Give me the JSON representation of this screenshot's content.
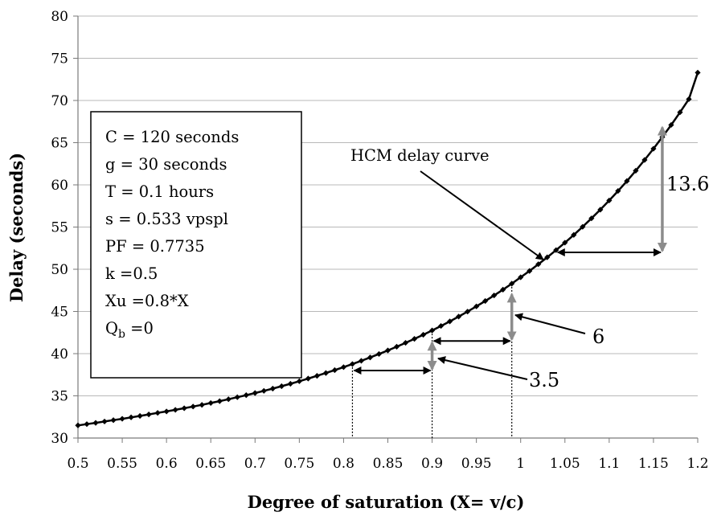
{
  "chart_data": {
    "type": "line",
    "xlabel": "Degree of saturation (X= v/c)",
    "ylabel": "Delay (seconds)",
    "xlim": [
      0.5,
      1.2
    ],
    "ylim": [
      30,
      80
    ],
    "x_ticks": [
      "0.5",
      "0.55",
      "0.6",
      "0.65",
      "0.7",
      "0.75",
      "0.8",
      "0.85",
      "0.9",
      "0.95",
      "1",
      "1.05",
      "1.1",
      "1.15",
      "1.2"
    ],
    "y_ticks": [
      "30",
      "35",
      "40",
      "45",
      "50",
      "55",
      "60",
      "65",
      "70",
      "75",
      "80"
    ],
    "grid": "horizontal",
    "series": [
      {
        "x": [
          0.5,
          0.51,
          0.52,
          0.53,
          0.54,
          0.55,
          0.56,
          0.57,
          0.58,
          0.59,
          0.6,
          0.61,
          0.62,
          0.63,
          0.64,
          0.65,
          0.66,
          0.67,
          0.68,
          0.69,
          0.7,
          0.71,
          0.72,
          0.73,
          0.74,
          0.75,
          0.76,
          0.77,
          0.78,
          0.79,
          0.8,
          0.81,
          0.82,
          0.83,
          0.84,
          0.85,
          0.86,
          0.87,
          0.88,
          0.89,
          0.9,
          0.91,
          0.92,
          0.93,
          0.94,
          0.95,
          0.96,
          0.97,
          0.98,
          0.99,
          1.0,
          1.01,
          1.02,
          1.03,
          1.04,
          1.05,
          1.06,
          1.07,
          1.08,
          1.09,
          1.1,
          1.11,
          1.12,
          1.13,
          1.14,
          1.15,
          1.16,
          1.17,
          1.18,
          1.19,
          1.2
        ],
        "y": [
          31.5,
          31.65,
          31.8,
          31.96,
          32.12,
          32.28,
          32.45,
          32.62,
          32.8,
          32.98,
          33.15,
          33.34,
          33.53,
          33.73,
          33.93,
          34.15,
          34.37,
          34.6,
          34.84,
          35.08,
          35.33,
          35.59,
          35.86,
          36.14,
          36.43,
          36.73,
          37.05,
          37.37,
          37.7,
          38.05,
          38.4,
          38.77,
          39.15,
          39.55,
          39.96,
          40.38,
          40.82,
          41.28,
          41.75,
          42.24,
          42.75,
          43.28,
          43.82,
          44.39,
          44.98,
          45.6,
          46.24,
          46.9,
          47.58,
          48.3,
          49.05,
          49.8,
          50.6,
          51.42,
          52.27,
          53.15,
          54.07,
          55.03,
          56.03,
          57.06,
          58.15,
          59.28,
          60.45,
          61.68,
          62.95,
          64.28,
          65.67,
          67.1,
          68.6,
          70.16,
          73.3
        ]
      }
    ],
    "annotations": {
      "curve_label": "HCM delay curve",
      "params": [
        "C = 120 seconds",
        "g = 30 seconds",
        "T = 0.1 hours",
        "s = 0.533 vpspl",
        "PF = 0.7735",
        "k =0.5",
        "Xu =0.8*X"
      ],
      "qb_main": "Q",
      "qb_sub": "b",
      "qb_rest": " =0",
      "values": [
        "3.5",
        "6",
        "13.6"
      ],
      "vertical_refs": [
        0.81,
        0.9,
        0.99
      ],
      "horizontal_arrows": [
        {
          "x_from": 0.81,
          "x_to": 0.9,
          "y": 38
        },
        {
          "x_from": 0.9,
          "x_to": 0.99,
          "y": 41.5
        },
        {
          "x_from": 1.04,
          "x_to": 1.16,
          "y": 52
        }
      ],
      "vertical_arrows": [
        {
          "x": 0.9,
          "y_from": 38,
          "y_to": 41.5
        },
        {
          "x": 0.99,
          "y_from": 41.5,
          "y_to": 47.2
        },
        {
          "x": 1.16,
          "y_from": 52,
          "y_to": 67
        }
      ]
    }
  },
  "colors": {
    "curve": "#000000",
    "grid": "#b8b8b8",
    "vertical_arrow": "#8c8c8c",
    "horizontal_arrow": "#000000"
  }
}
